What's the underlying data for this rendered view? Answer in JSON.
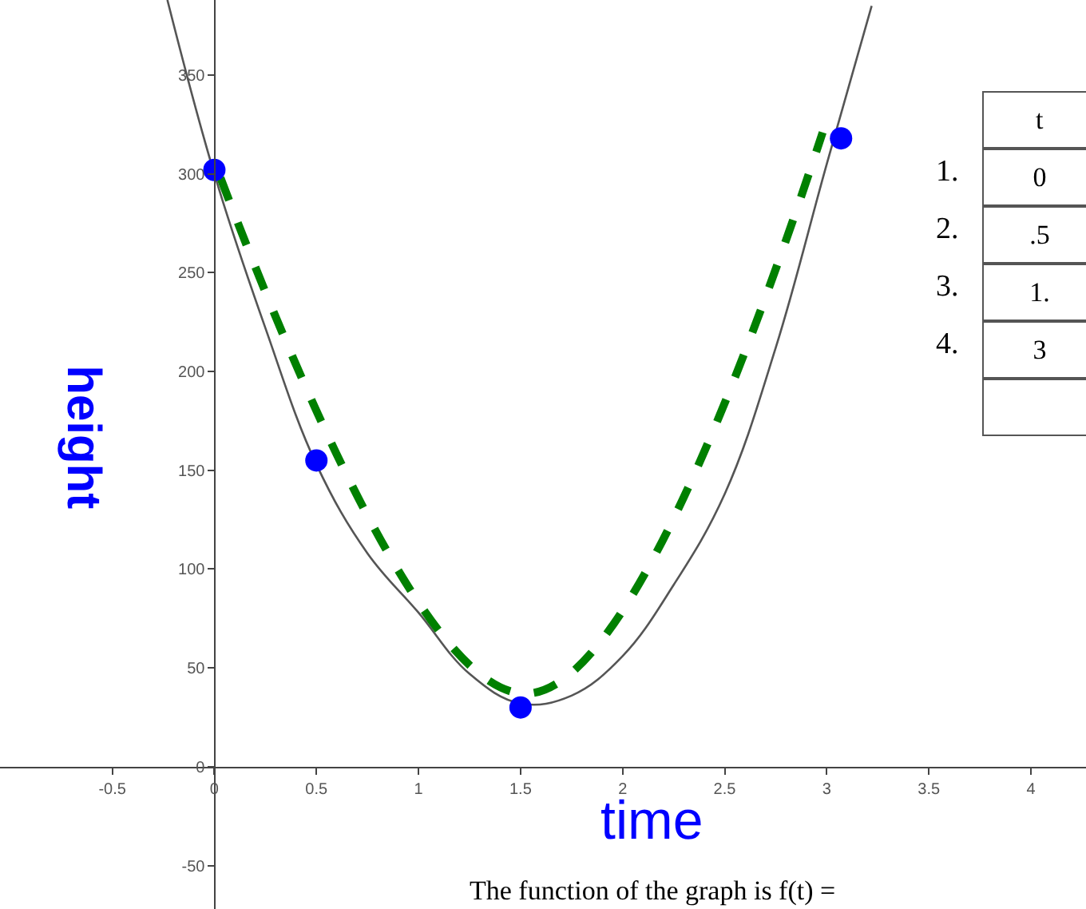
{
  "chart_data": {
    "type": "line",
    "xlabel": "time",
    "ylabel": "height",
    "xlim": [
      -1.05,
      4.27
    ],
    "ylim": [
      -72,
      388
    ],
    "xticks": [
      -0.5,
      0,
      0.5,
      1,
      1.5,
      2,
      2.5,
      3,
      3.5,
      4
    ],
    "yticks": [
      -50,
      0,
      50,
      100,
      150,
      200,
      250,
      300,
      350
    ],
    "series": [
      {
        "color": "#555555",
        "marker": "none",
        "line_style": "solid",
        "x": [
          -0.23,
          0,
          0.25,
          0.5,
          0.75,
          1,
          1.25,
          1.5,
          1.75,
          2,
          2.25,
          2.5,
          2.75,
          3,
          3.22
        ],
        "values": [
          388,
          300,
          222,
          153,
          108,
          78,
          47,
          32,
          36,
          56,
          92,
          138,
          212,
          305,
          385
        ]
      },
      {
        "type": "line",
        "color": "#008000",
        "marker": "none",
        "line_style": "dashed",
        "x": [
          0.03,
          1.53,
          2.98
        ],
        "values": [
          298,
          37,
          321
        ]
      },
      {
        "type": "scatter",
        "color": "#0000ff",
        "marker": "circle",
        "x": [
          0,
          0.5,
          1.5,
          3.07
        ],
        "values": [
          302,
          155,
          30,
          318
        ]
      }
    ],
    "annotations": [
      "The function of the graph is f(t) =",
      "1.",
      "2.",
      "3.",
      "4.",
      "t",
      "0",
      ".5",
      "1.",
      "3"
    ]
  }
}
